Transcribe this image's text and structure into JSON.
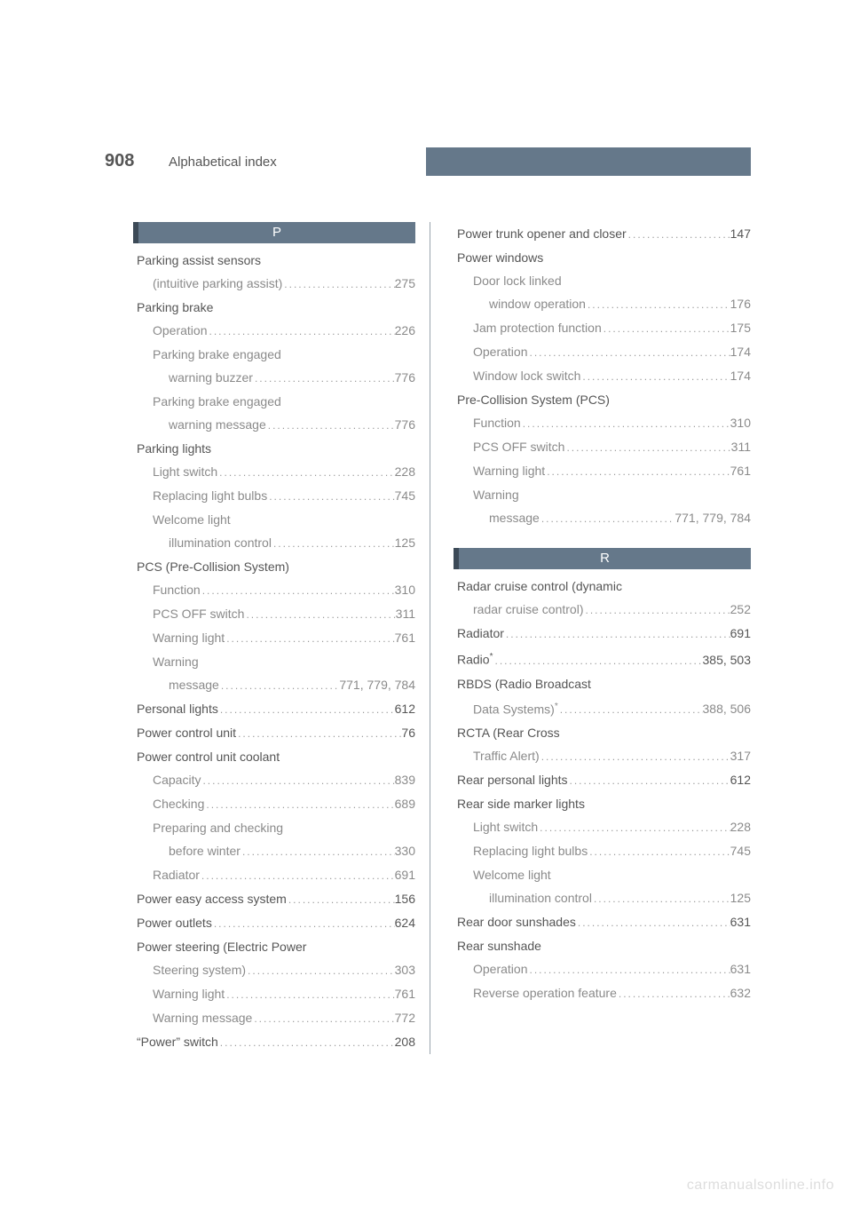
{
  "page_number": "908",
  "page_title": "Alphabetical index",
  "watermark": "carmanualsonline.info",
  "colors": {
    "band": "#65788a",
    "band_accent": "#3c4a57",
    "text_primary": "#555555",
    "text_secondary": "#8a8a8a",
    "dots": "#9a9a9a",
    "watermark": "#dddddd",
    "background": "#ffffff"
  },
  "typography": {
    "page_number_fontsize": 20,
    "title_fontsize": 15,
    "entry_fontsize": 14,
    "line_height": 26
  },
  "left": {
    "header": "P",
    "entries": [
      {
        "level": 0,
        "label": "Parking assist sensors"
      },
      {
        "level": 1,
        "label": "(intuitive parking assist)",
        "page": "275"
      },
      {
        "level": 0,
        "label": "Parking brake"
      },
      {
        "level": 1,
        "label": "Operation",
        "page": "226"
      },
      {
        "level": 1,
        "label": "Parking brake engaged"
      },
      {
        "level": 2,
        "label": "warning buzzer",
        "page": "776"
      },
      {
        "level": 1,
        "label": "Parking brake engaged"
      },
      {
        "level": 2,
        "label": "warning message",
        "page": "776"
      },
      {
        "level": 0,
        "label": "Parking lights"
      },
      {
        "level": 1,
        "label": "Light switch",
        "page": "228"
      },
      {
        "level": 1,
        "label": "Replacing light bulbs",
        "page": "745"
      },
      {
        "level": 1,
        "label": "Welcome light"
      },
      {
        "level": 2,
        "label": "illumination control",
        "page": "125"
      },
      {
        "level": 0,
        "label": "PCS (Pre-Collision System)"
      },
      {
        "level": 1,
        "label": "Function",
        "page": "310"
      },
      {
        "level": 1,
        "label": "PCS OFF switch",
        "page": "311"
      },
      {
        "level": 1,
        "label": "Warning light",
        "page": "761"
      },
      {
        "level": 1,
        "label": "Warning"
      },
      {
        "level": 2,
        "label": "message",
        "page": "771, 779, 784"
      },
      {
        "level": 0,
        "label": "Personal lights",
        "page": "612"
      },
      {
        "level": 0,
        "label": "Power control unit",
        "page": "76"
      },
      {
        "level": 0,
        "label": "Power control unit coolant"
      },
      {
        "level": 1,
        "label": "Capacity",
        "page": "839"
      },
      {
        "level": 1,
        "label": "Checking",
        "page": "689"
      },
      {
        "level": 1,
        "label": "Preparing and checking"
      },
      {
        "level": 2,
        "label": "before winter",
        "page": "330"
      },
      {
        "level": 1,
        "label": "Radiator",
        "page": "691"
      },
      {
        "level": 0,
        "label": "Power easy access system",
        "page": "156"
      },
      {
        "level": 0,
        "label": "Power outlets",
        "page": "624"
      },
      {
        "level": 0,
        "label": "Power steering (Electric Power"
      },
      {
        "level": 1,
        "label": "Steering system)",
        "page": "303"
      },
      {
        "level": 1,
        "label": "Warning light",
        "page": "761"
      },
      {
        "level": 1,
        "label": "Warning message",
        "page": "772"
      },
      {
        "level": 0,
        "label": "“Power” switch",
        "page": "208"
      }
    ]
  },
  "right_top": {
    "entries": [
      {
        "level": 0,
        "label": "Power trunk opener and closer",
        "page": "147"
      },
      {
        "level": 0,
        "label": "Power windows"
      },
      {
        "level": 1,
        "label": "Door lock linked"
      },
      {
        "level": 2,
        "label": "window operation",
        "page": "176"
      },
      {
        "level": 1,
        "label": "Jam protection function",
        "page": "175"
      },
      {
        "level": 1,
        "label": "Operation",
        "page": "174"
      },
      {
        "level": 1,
        "label": "Window lock switch",
        "page": "174"
      },
      {
        "level": 0,
        "label": "Pre-Collision System (PCS)"
      },
      {
        "level": 1,
        "label": "Function",
        "page": "310"
      },
      {
        "level": 1,
        "label": "PCS OFF switch",
        "page": "311"
      },
      {
        "level": 1,
        "label": "Warning light",
        "page": "761"
      },
      {
        "level": 1,
        "label": "Warning"
      },
      {
        "level": 2,
        "label": "message",
        "page": "771, 779, 784"
      }
    ]
  },
  "right_bottom": {
    "header": "R",
    "entries": [
      {
        "level": 0,
        "label": "Radar cruise control (dynamic"
      },
      {
        "level": 1,
        "label": "radar cruise control)",
        "page": "252"
      },
      {
        "level": 0,
        "label": "Radiator",
        "page": "691"
      },
      {
        "level": 0,
        "label": "Radio",
        "star": true,
        "page": "385, 503"
      },
      {
        "level": 0,
        "label": "RBDS (Radio Broadcast"
      },
      {
        "level": 1,
        "label": "Data Systems)",
        "star": true,
        "page": "388, 506"
      },
      {
        "level": 0,
        "label": "RCTA (Rear Cross"
      },
      {
        "level": 1,
        "label": "Traffic Alert)",
        "page": "317"
      },
      {
        "level": 0,
        "label": "Rear personal lights",
        "page": "612"
      },
      {
        "level": 0,
        "label": "Rear side marker lights"
      },
      {
        "level": 1,
        "label": "Light switch",
        "page": "228"
      },
      {
        "level": 1,
        "label": "Replacing light bulbs",
        "page": "745"
      },
      {
        "level": 1,
        "label": "Welcome light"
      },
      {
        "level": 2,
        "label": "illumination control",
        "page": "125"
      },
      {
        "level": 0,
        "label": "Rear door sunshades",
        "page": "631"
      },
      {
        "level": 0,
        "label": "Rear sunshade"
      },
      {
        "level": 1,
        "label": "Operation",
        "page": "631"
      },
      {
        "level": 1,
        "label": "Reverse operation feature",
        "page": "632"
      }
    ]
  }
}
